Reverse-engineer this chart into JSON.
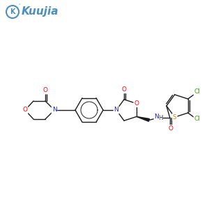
{
  "bg_color": "#ffffff",
  "logo_color": "#4a8fc0",
  "atom_colors": {
    "O": "#ff0000",
    "N": "#2222cc",
    "S": "#cc8800",
    "Cl": "#33aa00",
    "C": "#1a1a1a",
    "H": "#1a1a1a"
  },
  "bond_color": "#1a1a1a",
  "bond_width": 1.0,
  "fig_size": [
    3.0,
    3.0
  ],
  "dpi": 100
}
